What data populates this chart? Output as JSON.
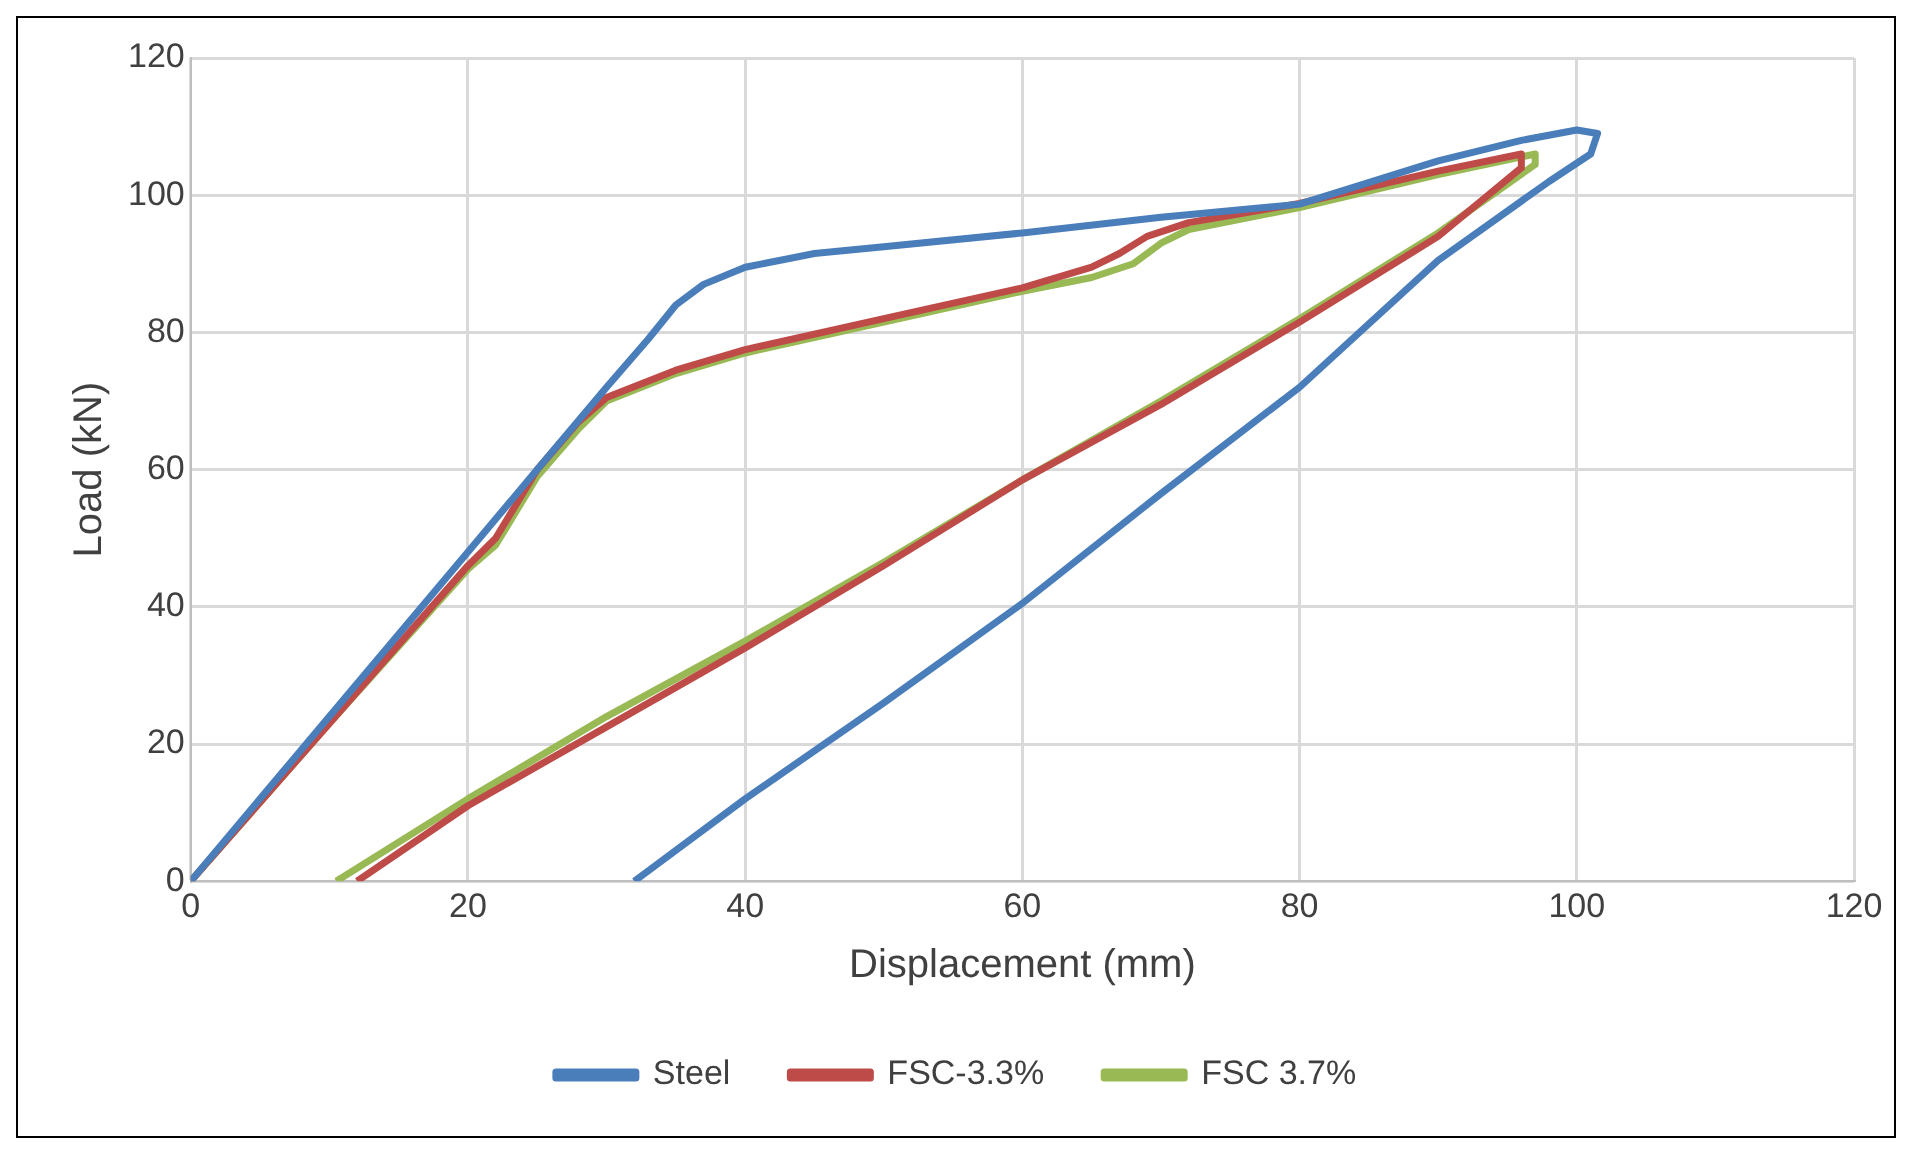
{
  "chart_data": {
    "type": "line",
    "xlabel": "Displacement (mm)",
    "ylabel": "Load (kN)",
    "xlim": [
      0,
      120
    ],
    "xticks": [
      0,
      20,
      40,
      60,
      80,
      100,
      120
    ],
    "ylim": [
      0,
      120
    ],
    "yticks": [
      0,
      20,
      40,
      60,
      80,
      100,
      120
    ],
    "grid": true,
    "legend": "bottom",
    "marker": "none",
    "line_style": "solid",
    "series": [
      {
        "name": "Steel",
        "color": "#4a7ebb",
        "x": [
          0,
          10,
          20,
          25,
          30,
          33,
          35,
          37,
          40,
          45,
          50,
          60,
          70,
          80,
          90,
          96,
          100,
          101.5,
          101,
          98,
          90,
          80,
          70,
          60,
          50,
          40,
          32
        ],
        "values": [
          0,
          24,
          48,
          60,
          72,
          79,
          84,
          87,
          89.5,
          91.5,
          92.5,
          94.5,
          96.8,
          98.7,
          105,
          108,
          109.5,
          109,
          106,
          102,
          90.5,
          72,
          56.5,
          40.5,
          26,
          12,
          0
        ]
      },
      {
        "name": "FSC-3.3%",
        "color": "#be4b48",
        "x": [
          0,
          10,
          20,
          22,
          25,
          28,
          30,
          35,
          40,
          50,
          60,
          65,
          67,
          69,
          72,
          80,
          90,
          96,
          96,
          90,
          80,
          70,
          60,
          50,
          40,
          30,
          20,
          12
        ],
        "values": [
          0,
          23,
          46,
          50,
          60,
          67,
          70.5,
          74.5,
          77.5,
          82,
          86.5,
          89.5,
          91.5,
          94,
          96,
          98.8,
          103.5,
          106,
          104,
          94,
          81.5,
          69.5,
          58.5,
          46,
          34,
          22.5,
          11,
          0
        ]
      },
      {
        "name": "FSC 3.7%",
        "color": "#98b954",
        "x": [
          0,
          10,
          20,
          22,
          25,
          28,
          30,
          35,
          40,
          50,
          60,
          65,
          68,
          70,
          72,
          80,
          90,
          97,
          97,
          90,
          80,
          70,
          60,
          50,
          40,
          30,
          20,
          10.5
        ],
        "values": [
          0,
          23,
          45.5,
          49,
          59,
          66,
          70,
          74,
          77,
          81.5,
          86,
          88,
          90,
          93,
          95,
          98.2,
          103,
          106,
          104.5,
          94.5,
          82,
          70,
          58.5,
          46.5,
          35,
          24,
          12,
          0
        ]
      }
    ]
  }
}
